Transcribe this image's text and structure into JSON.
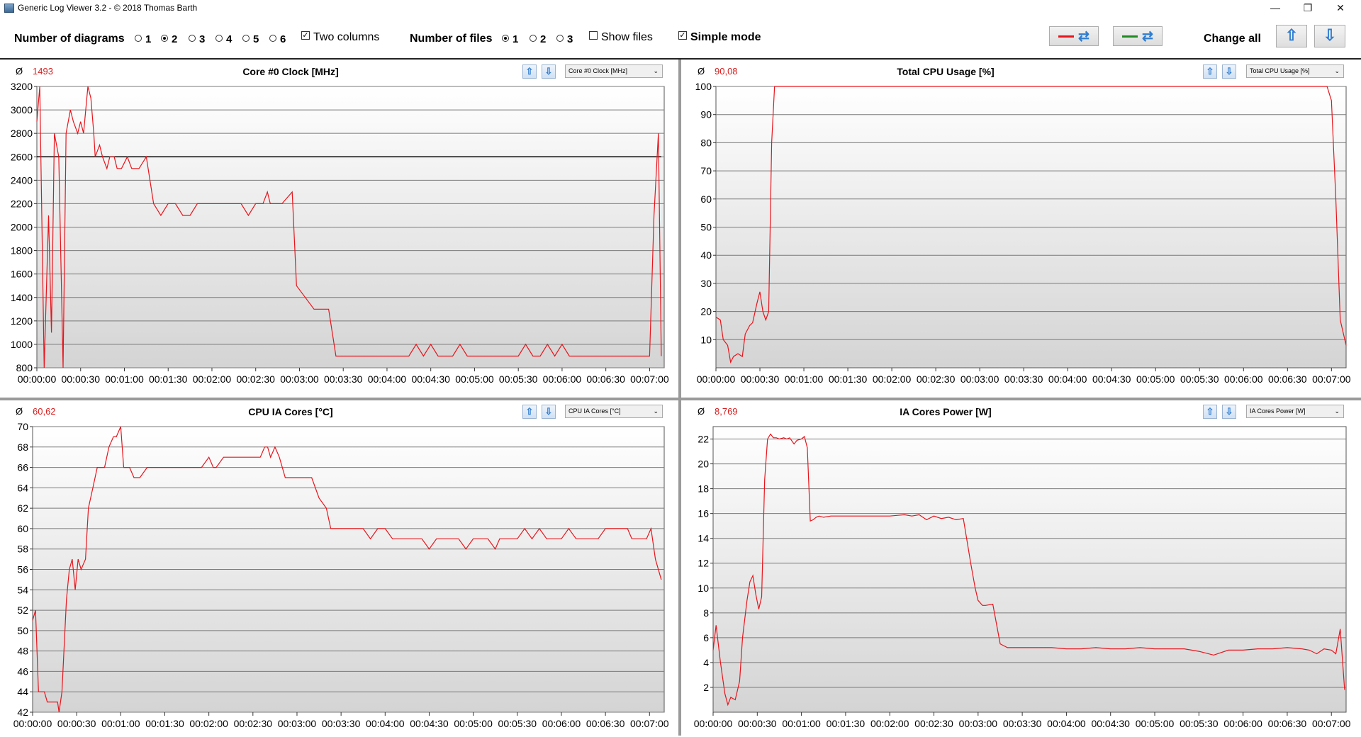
{
  "window": {
    "title": "Generic Log Viewer 3.2 - © 2018 Thomas Barth",
    "minimize": "—",
    "restore": "❐",
    "close": "✕"
  },
  "toolbar": {
    "diagrams_label": "Number of diagrams",
    "diagram_options": [
      "1",
      "2",
      "3",
      "4",
      "5",
      "6"
    ],
    "diagram_selected": "2",
    "two_columns_label": "Two columns",
    "two_columns_checked": true,
    "files_label": "Number of files",
    "file_options": [
      "1",
      "2",
      "3"
    ],
    "file_selected": "1",
    "show_files_label": "Show files",
    "show_files_checked": false,
    "simple_mode_label": "Simple mode",
    "simple_mode_checked": true,
    "change_all_label": "Change all",
    "color_red": "#e8141b",
    "color_green": "#1f8a1f"
  },
  "panels": [
    {
      "id": "p1",
      "average": "1493",
      "title": "Core #0 Clock [MHz]",
      "select_value": "Core #0 Clock [MHz]"
    },
    {
      "id": "p2",
      "average": "90,08",
      "title": "Total CPU Usage [%]",
      "select_value": "Total CPU Usage [%]"
    },
    {
      "id": "p3",
      "average": "60,62",
      "title": "CPU IA Cores [°C]",
      "select_value": "CPU IA Cores [°C]"
    },
    {
      "id": "p4",
      "average": "8,769",
      "title": "IA Cores Power [W]",
      "select_value": "IA Cores Power [W]"
    }
  ],
  "avg_symbol": "Ø",
  "line_color": "#e8141b",
  "chart_data": [
    {
      "type": "line",
      "title": "Core #0 Clock [MHz]",
      "ylim": [
        800,
        3200
      ],
      "yticks": [
        800,
        1000,
        1200,
        1400,
        1600,
        1800,
        2000,
        2200,
        2400,
        2600,
        2800,
        3000,
        3200
      ],
      "xtick_labels": [
        "00:00:00",
        "00:00:30",
        "00:01:00",
        "00:01:30",
        "00:02:00",
        "00:02:30",
        "00:03:00",
        "00:03:30",
        "00:04:00",
        "00:04:30",
        "00:05:00",
        "00:05:30",
        "00:06:00",
        "00:06:30",
        "00:07:00"
      ],
      "xlim_seconds": [
        0,
        430
      ],
      "reference_line": 2600,
      "series": [
        {
          "x": [
            0,
            2,
            5,
            8,
            10,
            12,
            15,
            18,
            20,
            23,
            25,
            28,
            30,
            32,
            35,
            37,
            39,
            40,
            43,
            45,
            48,
            50,
            53,
            55,
            58,
            62,
            65,
            70,
            75,
            80,
            85,
            90,
            95,
            100,
            105,
            110,
            115,
            120,
            125,
            130,
            135,
            140,
            145,
            150,
            155,
            158,
            160,
            165,
            168,
            175,
            178,
            190,
            195,
            200,
            205,
            210,
            215,
            220,
            225,
            230,
            235,
            240,
            245,
            250,
            255,
            260,
            265,
            270,
            275,
            280,
            285,
            290,
            295,
            300,
            305,
            310,
            315,
            320,
            325,
            330,
            335,
            340,
            345,
            350,
            355,
            360,
            365,
            370,
            375,
            380,
            385,
            390,
            395,
            400,
            405,
            410,
            415,
            420,
            423,
            426,
            428
          ],
          "values": [
            2900,
            3200,
            800,
            2100,
            1100,
            2800,
            2600,
            800,
            2800,
            3000,
            2900,
            2800,
            2900,
            2800,
            3200,
            3100,
            2800,
            2600,
            2700,
            2600,
            2500,
            2600,
            2600,
            2500,
            2500,
            2600,
            2500,
            2500,
            2600,
            2200,
            2100,
            2200,
            2200,
            2100,
            2100,
            2200,
            2200,
            2200,
            2200,
            2200,
            2200,
            2200,
            2100,
            2200,
            2200,
            2300,
            2200,
            2200,
            2200,
            2300,
            1500,
            1300,
            1300,
            1300,
            900,
            900,
            900,
            900,
            900,
            900,
            900,
            900,
            900,
            900,
            900,
            1000,
            900,
            1000,
            900,
            900,
            900,
            1000,
            900,
            900,
            900,
            900,
            900,
            900,
            900,
            900,
            1000,
            900,
            900,
            1000,
            900,
            1000,
            900,
            900,
            900,
            900,
            900,
            900,
            900,
            900,
            900,
            900,
            900,
            900,
            2100,
            2800,
            900
          ]
        }
      ]
    },
    {
      "type": "line",
      "title": "Total CPU Usage [%]",
      "ylim": [
        0,
        100
      ],
      "yticks": [
        10,
        20,
        30,
        40,
        50,
        60,
        70,
        80,
        90,
        100
      ],
      "xtick_labels": [
        "00:00:00",
        "00:00:30",
        "00:01:00",
        "00:01:30",
        "00:02:00",
        "00:02:30",
        "00:03:00",
        "00:03:30",
        "00:04:00",
        "00:04:30",
        "00:05:00",
        "00:05:30",
        "00:06:00",
        "00:06:30",
        "00:07:00"
      ],
      "xlim_seconds": [
        0,
        430
      ],
      "series": [
        {
          "x": [
            0,
            3,
            5,
            8,
            10,
            12,
            15,
            18,
            20,
            23,
            25,
            28,
            30,
            32,
            34,
            36,
            38,
            40,
            42,
            44,
            46,
            50,
            100,
            200,
            300,
            400,
            417,
            420,
            423,
            426,
            430
          ],
          "values": [
            18,
            17,
            10,
            8,
            2,
            4,
            5,
            4,
            12,
            15,
            16,
            23,
            27,
            20,
            17,
            20,
            80,
            100,
            100,
            100,
            100,
            100,
            100,
            100,
            100,
            100,
            100,
            95,
            60,
            17,
            8
          ]
        }
      ]
    },
    {
      "type": "line",
      "title": "CPU IA Cores [°C]",
      "ylim": [
        42,
        70
      ],
      "yticks": [
        42,
        44,
        46,
        48,
        50,
        52,
        54,
        56,
        58,
        60,
        62,
        64,
        66,
        68,
        70
      ],
      "xtick_labels": [
        "00:00:00",
        "00:00:30",
        "00:01:00",
        "00:01:30",
        "00:02:00",
        "00:02:30",
        "00:03:00",
        "00:03:30",
        "00:04:00",
        "00:04:30",
        "00:05:00",
        "00:05:30",
        "00:06:00",
        "00:06:30",
        "00:07:00"
      ],
      "xlim_seconds": [
        0,
        430
      ],
      "series": [
        {
          "x": [
            0,
            2,
            4,
            8,
            10,
            14,
            17,
            18,
            20,
            23,
            25,
            27,
            29,
            31,
            33,
            36,
            38,
            41,
            44,
            49,
            52,
            55,
            57,
            60,
            62,
            64,
            66,
            69,
            73,
            78,
            82,
            87,
            93,
            100,
            107,
            115,
            120,
            123,
            125,
            130,
            140,
            145,
            150,
            155,
            158,
            160,
            162,
            165,
            168,
            172,
            175,
            180,
            185,
            188,
            190,
            195,
            200,
            203,
            205,
            210,
            220,
            225,
            230,
            235,
            240,
            245,
            250,
            255,
            258,
            260,
            265,
            270,
            275,
            280,
            285,
            290,
            295,
            300,
            305,
            310,
            315,
            318,
            320,
            325,
            330,
            335,
            340,
            345,
            350,
            355,
            360,
            365,
            370,
            375,
            380,
            385,
            390,
            395,
            400,
            405,
            408,
            412,
            415,
            418,
            421,
            424,
            428
          ],
          "values": [
            51,
            52,
            44,
            44,
            43,
            43,
            43,
            42,
            44,
            53,
            56,
            57,
            54,
            57,
            56,
            57,
            62,
            64,
            66,
            66,
            68,
            69,
            69,
            70,
            66,
            66,
            66,
            65,
            65,
            66,
            66,
            66,
            66,
            66,
            66,
            66,
            67,
            66,
            66,
            67,
            67,
            67,
            67,
            67,
            68,
            68,
            67,
            68,
            67,
            65,
            65,
            65,
            65,
            65,
            65,
            63,
            62,
            60,
            60,
            60,
            60,
            60,
            59,
            60,
            60,
            59,
            59,
            59,
            59,
            59,
            59,
            58,
            59,
            59,
            59,
            59,
            58,
            59,
            59,
            59,
            58,
            59,
            59,
            59,
            59,
            60,
            59,
            60,
            59,
            59,
            59,
            60,
            59,
            59,
            59,
            59,
            60,
            60,
            60,
            60,
            59,
            59,
            59,
            59,
            60,
            57,
            55
          ]
        }
      ]
    },
    {
      "type": "line",
      "title": "IA Cores Power [W]",
      "ylim": [
        0,
        23
      ],
      "yticks": [
        2,
        4,
        6,
        8,
        10,
        12,
        14,
        16,
        18,
        20,
        22
      ],
      "xtick_labels": [
        "00:00:00",
        "00:00:30",
        "00:01:00",
        "00:01:30",
        "00:02:00",
        "00:02:30",
        "00:03:00",
        "00:03:30",
        "00:04:00",
        "00:04:30",
        "00:05:00",
        "00:05:30",
        "00:06:00",
        "00:06:30",
        "00:07:00"
      ],
      "xlim_seconds": [
        0,
        430
      ],
      "series": [
        {
          "x": [
            0,
            2,
            5,
            8,
            10,
            12,
            15,
            18,
            20,
            23,
            25,
            27,
            29,
            31,
            33,
            35,
            37,
            39,
            41,
            43,
            45,
            48,
            50,
            52,
            55,
            57,
            60,
            62,
            64,
            66,
            68,
            70,
            72,
            75,
            80,
            90,
            100,
            110,
            120,
            130,
            135,
            140,
            145,
            150,
            155,
            160,
            165,
            170,
            175,
            178,
            180,
            183,
            185,
            190,
            195,
            200,
            210,
            220,
            230,
            240,
            250,
            260,
            270,
            280,
            290,
            300,
            310,
            320,
            330,
            340,
            350,
            360,
            370,
            380,
            390,
            400,
            405,
            410,
            415,
            420,
            423,
            426,
            429
          ],
          "values": [
            5,
            7,
            4,
            1.5,
            0.6,
            1.2,
            1,
            2.5,
            6,
            9,
            10.5,
            11,
            9.5,
            8.3,
            9.3,
            18.7,
            22,
            22.4,
            22.1,
            22.1,
            22,
            22.1,
            22,
            22.1,
            21.6,
            21.9,
            22,
            22.2,
            21.3,
            15.4,
            15.5,
            15.7,
            15.8,
            15.7,
            15.8,
            15.8,
            15.8,
            15.8,
            15.8,
            15.9,
            15.8,
            15.9,
            15.5,
            15.8,
            15.6,
            15.7,
            15.5,
            15.6,
            12,
            10,
            9,
            8.6,
            8.6,
            8.7,
            5.5,
            5.2,
            5.2,
            5.2,
            5.2,
            5.1,
            5.1,
            5.2,
            5.1,
            5.1,
            5.2,
            5.1,
            5.1,
            5.1,
            4.9,
            4.6,
            5,
            5,
            5.1,
            5.1,
            5.2,
            5.1,
            5,
            4.7,
            5.1,
            5,
            4.7,
            6.7,
            1.8
          ]
        }
      ]
    }
  ]
}
